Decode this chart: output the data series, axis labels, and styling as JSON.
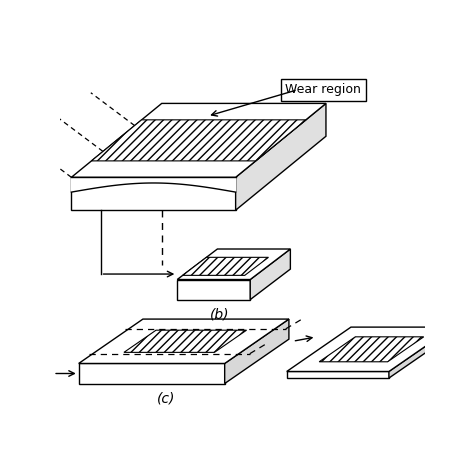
{
  "bg_color": "#ffffff",
  "line_color": "#000000",
  "label_b": "(b)",
  "label_c": "(c)",
  "wear_region_label": "Wear region",
  "fig_width": 4.74,
  "fig_height": 4.74,
  "dpi": 100
}
